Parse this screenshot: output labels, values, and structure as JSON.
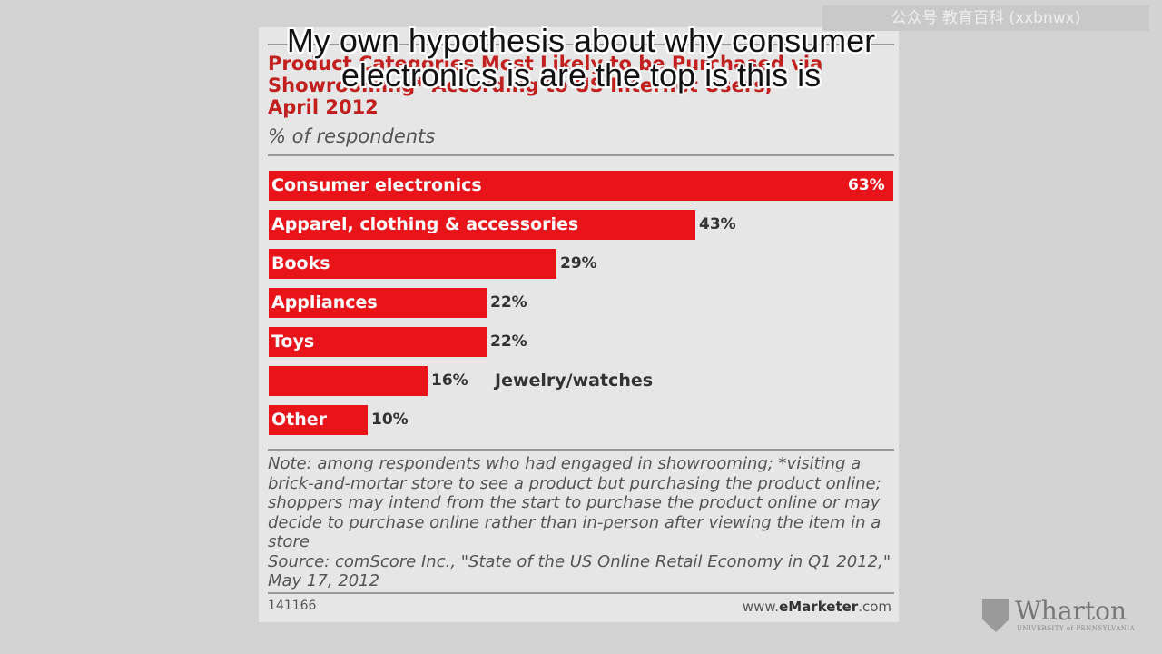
{
  "caption": {
    "line1": "My own hypothesis about why consumer",
    "line2": "electronics is are the top is this is"
  },
  "watermark": "公众号 教育百科 (xxbnwx)",
  "chart_data": {
    "type": "bar",
    "orientation": "horizontal",
    "title": "Product Categories Most Likely to be Purchased via Showrooming* According to US Internet Users, April 2012",
    "title_lines": [
      "Product Categories Most Likely to be Purchased via",
      "Showrooming* According to US Internet Users,",
      "April 2012"
    ],
    "subtitle": "% of respondents",
    "categories": [
      "Consumer electronics",
      "Apparel, clothing & accessories",
      "Books",
      "Appliances",
      "Toys",
      "Jewelry/watches",
      "Other"
    ],
    "values": [
      63,
      43,
      29,
      22,
      22,
      16,
      10
    ],
    "value_labels": [
      "63%",
      "43%",
      "29%",
      "22%",
      "22%",
      "16%",
      "10%"
    ],
    "xlim": [
      0,
      63
    ],
    "label_outside_bar": [
      false,
      false,
      false,
      false,
      false,
      true,
      false
    ],
    "bar_color": "#e8141a",
    "grid": false
  },
  "note": {
    "text": "Note: among respondents who had engaged in showrooming; *visiting a brick-and-mortar store to see a product but purchasing the product online; shoppers may intend from the start to purchase the product online or may decide to purchase online rather than in-person after viewing the item in a store",
    "source": "Source: comScore Inc., \"State of the US Online Retail Economy in Q1 2012,\" May 17, 2012"
  },
  "footer": {
    "id": "141166",
    "site_prefix": "www.",
    "site_brand": "eMarketer",
    "site_suffix": ".com"
  },
  "logo": {
    "name": "Wharton",
    "sub": "UNIVERSITY of PENNSYLVANIA"
  }
}
